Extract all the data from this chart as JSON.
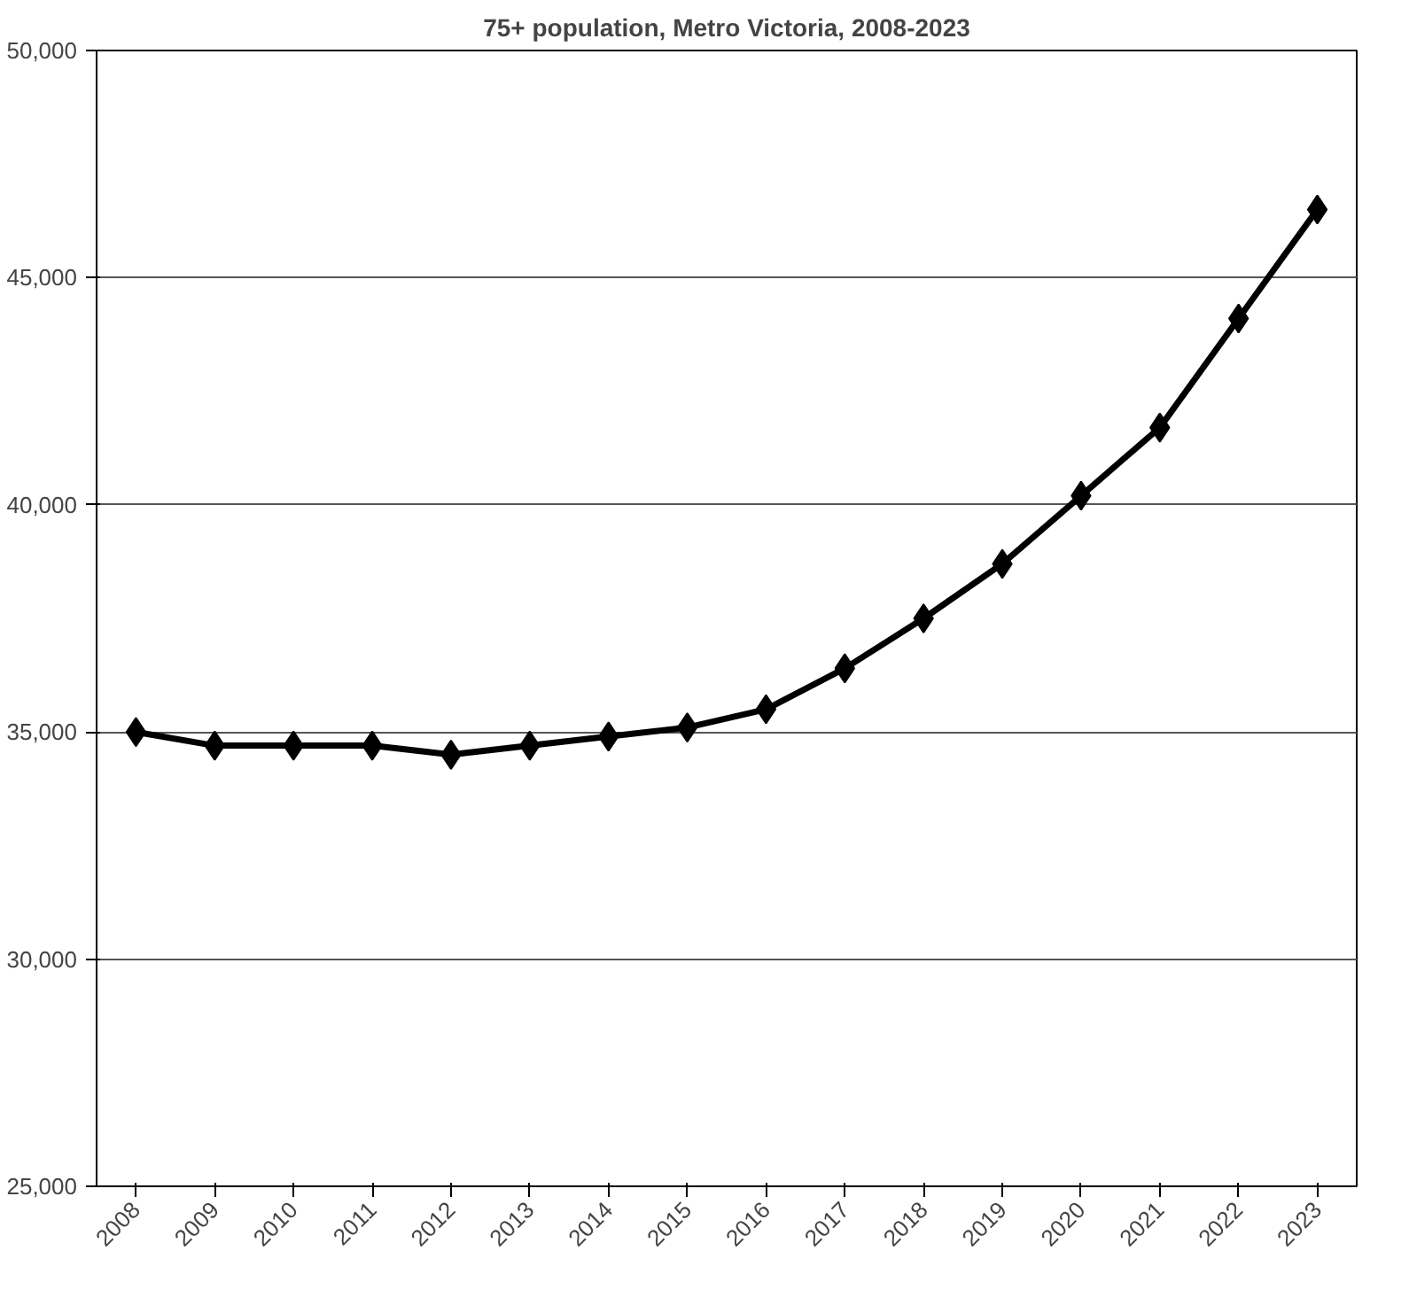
{
  "chart_data": {
    "type": "line",
    "title": "75+ population, Metro Victoria, 2008-2023",
    "categories": [
      "2008",
      "2009",
      "2010",
      "2011",
      "2012",
      "2013",
      "2014",
      "2015",
      "2016",
      "2017",
      "2018",
      "2019",
      "2020",
      "2021",
      "2022",
      "2023"
    ],
    "series": [
      {
        "color": "#000000",
        "values": [
          35000,
          34700,
          34700,
          34700,
          34500,
          34700,
          34900,
          35100,
          35500,
          36400,
          37500,
          38700,
          40200,
          41700,
          44100,
          46500
        ]
      }
    ],
    "ylim": [
      25000,
      50000
    ],
    "yticks": [
      {
        "value": 25000,
        "label": "25,000"
      },
      {
        "value": 30000,
        "label": "30,000"
      },
      {
        "value": 35000,
        "label": "35,000"
      },
      {
        "value": 40000,
        "label": "40,000"
      },
      {
        "value": 45000,
        "label": "45,000"
      },
      {
        "value": 50000,
        "label": "50,000"
      }
    ],
    "grid": "y",
    "marker": "diamond",
    "line_style": "solid"
  }
}
